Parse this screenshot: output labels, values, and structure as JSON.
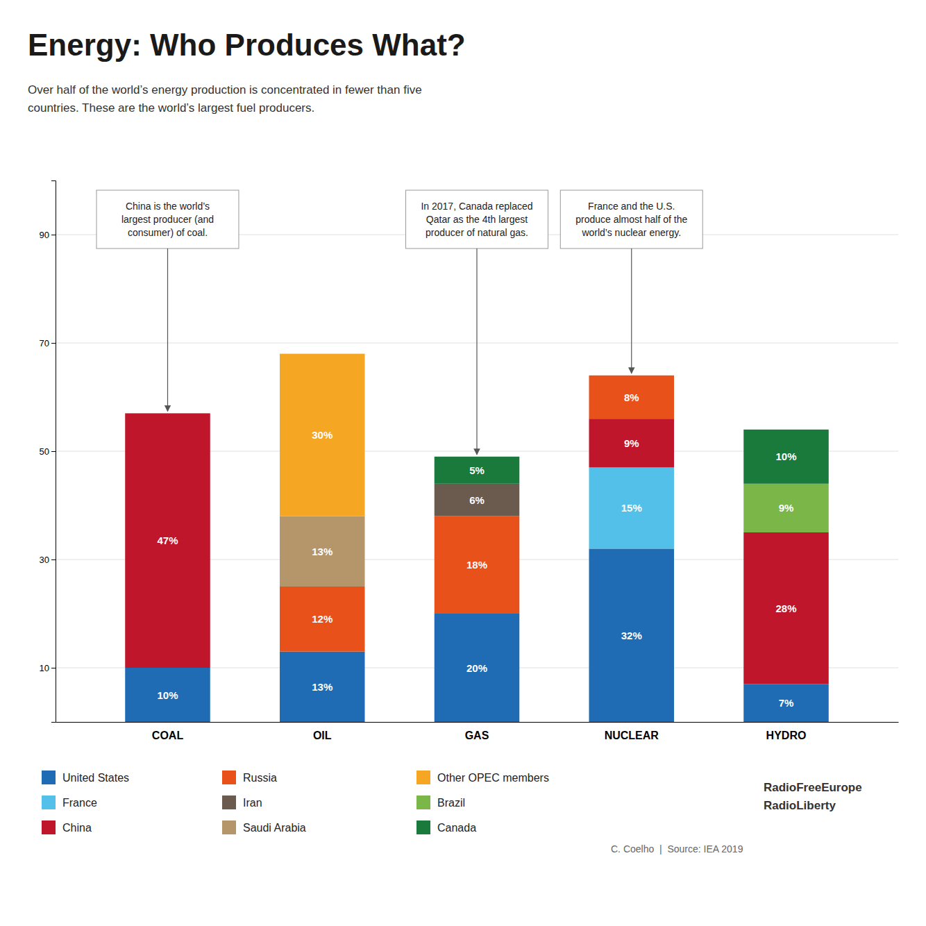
{
  "chart_data": {
    "type": "bar",
    "title": "Energy: Who Produces What?",
    "subtitle": "Over half of the world’s energy production is concentrated in fewer than five\ncountries. These are the world’s largest fuel producers.",
    "categories": [
      "COAL",
      "OIL",
      "GAS",
      "NUCLEAR",
      "HYDRO"
    ],
    "stacked": true,
    "data_labels": true,
    "grid": true,
    "legend": "bottom",
    "ylim": [
      0,
      100
    ],
    "yticks": [
      10,
      30,
      50,
      70,
      90
    ],
    "series": [
      {
        "name": "United States",
        "color": "#1f6cb5",
        "values": [
          10,
          13,
          20,
          32,
          7
        ],
        "value_labels": [
          "10%",
          "13%",
          "20%",
          "32%",
          "7%"
        ]
      },
      {
        "name": "France",
        "color": "#52c0e8",
        "values": [
          null,
          null,
          null,
          15,
          null
        ],
        "value_labels": [
          null,
          null,
          null,
          "15%",
          null
        ]
      },
      {
        "name": "China",
        "color": "#c0162c",
        "values": [
          47,
          null,
          null,
          9,
          28
        ],
        "value_labels": [
          "47%",
          null,
          null,
          "9%",
          "28%"
        ]
      },
      {
        "name": "Russia",
        "color": "#e8521a",
        "values": [
          null,
          12,
          18,
          8,
          null
        ],
        "value_labels": [
          null,
          "12%",
          "18%",
          "8%",
          null
        ]
      },
      {
        "name": "Iran",
        "color": "#6b5a4e",
        "values": [
          null,
          null,
          6,
          null,
          null
        ],
        "value_labels": [
          null,
          null,
          "6%",
          null,
          null
        ]
      },
      {
        "name": "Saudi Arabia",
        "color": "#b5956a",
        "values": [
          null,
          13,
          null,
          null,
          null
        ],
        "value_labels": [
          null,
          "13%",
          null,
          null,
          null
        ]
      },
      {
        "name": "Other OPEC members",
        "color": "#f5a623",
        "values": [
          null,
          30,
          null,
          null,
          null
        ],
        "value_labels": [
          null,
          "30%",
          null,
          null,
          null
        ]
      },
      {
        "name": "Brazil",
        "color": "#7ab648",
        "values": [
          null,
          null,
          null,
          null,
          9
        ],
        "value_labels": [
          null,
          null,
          null,
          null,
          "9%"
        ]
      },
      {
        "name": "Canada",
        "color": "#1a7a3c",
        "values": [
          null,
          null,
          5,
          null,
          10
        ],
        "value_labels": [
          null,
          null,
          "5%",
          null,
          "10%"
        ]
      }
    ],
    "annotations": [
      {
        "text": "China is the world’s\nlargest producer (and\nconsumer) of coal.",
        "category": "COAL"
      },
      {
        "text": "In 2017, Canada replaced\nQatar as the 4th largest\nproducer of natural gas.",
        "category": "GAS"
      },
      {
        "text": "France and the U.S.\nproduce almost half of the\nworld’s nuclear energy.",
        "category": "NUCLEAR"
      }
    ],
    "caption": "C. Coelho  |  Source: IEA 2019",
    "logo": [
      "RadioFreeEurope",
      "RadioLiberty"
    ]
  }
}
